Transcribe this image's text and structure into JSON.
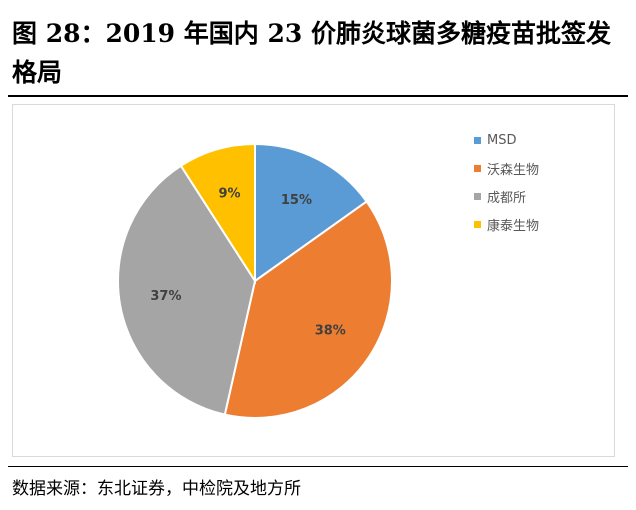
{
  "figure": {
    "title": "图 28：2019 年国内 23 价肺炎球菌多糖疫苗批签发格局",
    "source": "数据来源：东北证券，中检院及地方所"
  },
  "chart_data": {
    "type": "pie",
    "title": "",
    "labels": [
      "MSD",
      "沃森生物",
      "成都所",
      "康泰生物"
    ],
    "values": [
      15,
      38,
      37,
      9
    ],
    "value_labels": [
      "15%",
      "38%",
      "37%",
      "9%"
    ],
    "colors": [
      "#5B9BD5",
      "#ED7D31",
      "#A5A5A5",
      "#FFC000"
    ],
    "start_angle_deg": 0,
    "direction": "clockwise",
    "legend_position": "right"
  }
}
